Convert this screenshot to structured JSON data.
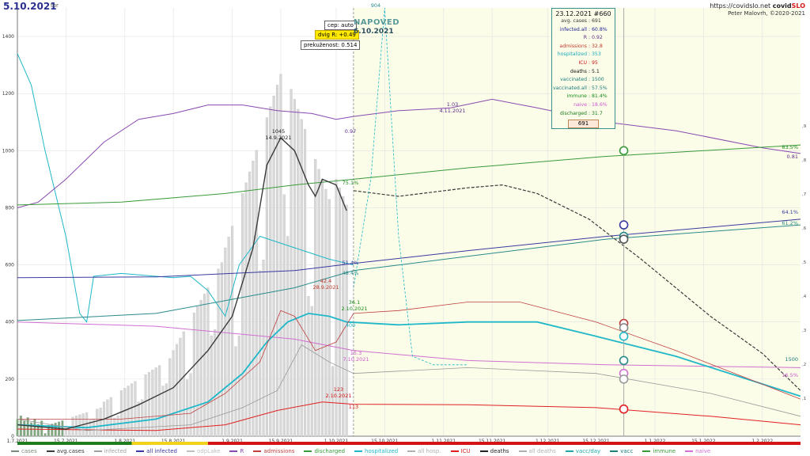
{
  "header": {
    "date": "5.10.2021",
    "date_mark": "tor",
    "site_prefix": "https://covidslo.net",
    "brand_a": "covid",
    "brand_b": "SLO",
    "copyright": "Peter Malovrh, ©2020-2021"
  },
  "tags": {
    "cep": "cep: auto",
    "dvig": "dvig R: +0.49",
    "prekuzenost": "prekuženost: 0.514",
    "forecast": "NAPOVED",
    "forecast_date": "6.10.2021"
  },
  "infobox": {
    "title": "23.12.2021 #660",
    "rows": [
      {
        "k": "avg. cases",
        "v": "691",
        "color": "#333333"
      },
      {
        "k": "infected.all",
        "v": "60.8%",
        "color": "#1c1c8f"
      },
      {
        "k": "R",
        "v": "0.92",
        "color": "#5a2a8a"
      },
      {
        "k": "admissions",
        "v": "32.8",
        "color": "#c0392b"
      },
      {
        "k": "hospitalized",
        "v": "353",
        "color": "#1aa8b8"
      },
      {
        "k": "ICU",
        "v": "95",
        "color": "#d01010"
      },
      {
        "k": "deaths",
        "v": "5.1",
        "color": "#111111"
      },
      {
        "k": "vaccinated",
        "v": "1500",
        "color": "#1a7a7a"
      },
      {
        "k": "vaccinated.all",
        "v": "57.5%",
        "color": "#1a7a7a"
      },
      {
        "k": "immune",
        "v": "81.4%",
        "color": "#1a8a1a"
      },
      {
        "k": "naive",
        "v": "18.6%",
        "color": "#cc55cc"
      },
      {
        "k": "discharged",
        "v": "31.7",
        "color": "#1a7a1a"
      }
    ],
    "footer": "691"
  },
  "legend": [
    {
      "label": "cases",
      "color": "#7a8a7a"
    },
    {
      "label": "avg.cases",
      "color": "#3a3a3a"
    },
    {
      "label": "infected",
      "color": "#a0a0a0"
    },
    {
      "label": "all infected",
      "color": "#3a3aa0"
    },
    {
      "label": "odpLake",
      "color": "#c0c0c0"
    },
    {
      "label": "R",
      "color": "#8a4ab0"
    },
    {
      "label": "admissions",
      "color": "#c04040"
    },
    {
      "label": "discharged",
      "color": "#3a9a3a"
    },
    {
      "label": "hospitalized",
      "color": "#20b8c8"
    },
    {
      "label": "all hosp.",
      "color": "#b0b0b0"
    },
    {
      "label": "ICU",
      "color": "#e02020"
    },
    {
      "label": "deaths",
      "color": "#222222"
    },
    {
      "label": "all deaths",
      "color": "#b0b0b0"
    },
    {
      "label": "vacc/day",
      "color": "#20a8a8"
    },
    {
      "label": "vacc",
      "color": "#208080"
    },
    {
      "label": "immune",
      "color": "#3a9a3a"
    },
    {
      "label": "naive",
      "color": "#d070d0"
    }
  ],
  "chart_data": {
    "type": "line",
    "x_ticks": [
      "1.7.2021",
      "15.7.2021",
      "1.8.2021",
      "15.8.2021",
      "1.9.2021",
      "15.9.2021",
      "1.10.2021",
      "15.10.2021",
      "1.11.2021",
      "15.11.2021",
      "1.12.2021",
      "15.12.2021",
      "1.1.2022",
      "15.1.2022",
      "1.2.2022"
    ],
    "ylim": [
      0,
      1500
    ],
    "y_ticks": [
      0,
      200,
      400,
      600,
      800,
      1000,
      1200,
      1400
    ],
    "right_ticks": [
      ",1",
      ",2",
      ",3",
      ",4",
      ",5",
      ",6",
      ",7",
      ",8",
      ",9"
    ],
    "colors": {
      "cases_bar": "#d8d8d8",
      "cases_bar_early": "#7fa87f",
      "avg_cases": "#3a3a3a",
      "R": "#8a4ab0",
      "all_infected": "#3a3aa0",
      "vacc": "#2a8a8a",
      "immune": "#3a9a3a",
      "naive": "#d070d0",
      "admissions": "#c04040",
      "hospitalized": "#20b8c8",
      "ICU": "#e02020",
      "deaths": "#888888",
      "forecast_bg": "#fbfde8"
    },
    "annotations": [
      {
        "text": "1045",
        "sub": "14.9.2021"
      },
      {
        "text": "1.03",
        "sub": "4.11.2021"
      },
      {
        "text": "904"
      },
      {
        "text": "42.4",
        "sub": "28.9.2021"
      },
      {
        "text": "123",
        "sub": "2.10.2021"
      },
      {
        "text": "36.1",
        "sub": "2.10.2021"
      },
      {
        "text": "15.3",
        "sub": "7.10.2021"
      },
      {
        "text": "0.97"
      },
      {
        "text": "75.1%"
      },
      {
        "text": "51.4%"
      },
      {
        "text": "48.4%"
      },
      {
        "text": "113"
      },
      {
        "text": "400"
      },
      {
        "text": "83.5%"
      },
      {
        "text": "0.81"
      },
      {
        "text": "64.1%"
      },
      {
        "text": "61.2%"
      },
      {
        "text": "1500"
      },
      {
        "text": "16.5%"
      }
    ]
  }
}
